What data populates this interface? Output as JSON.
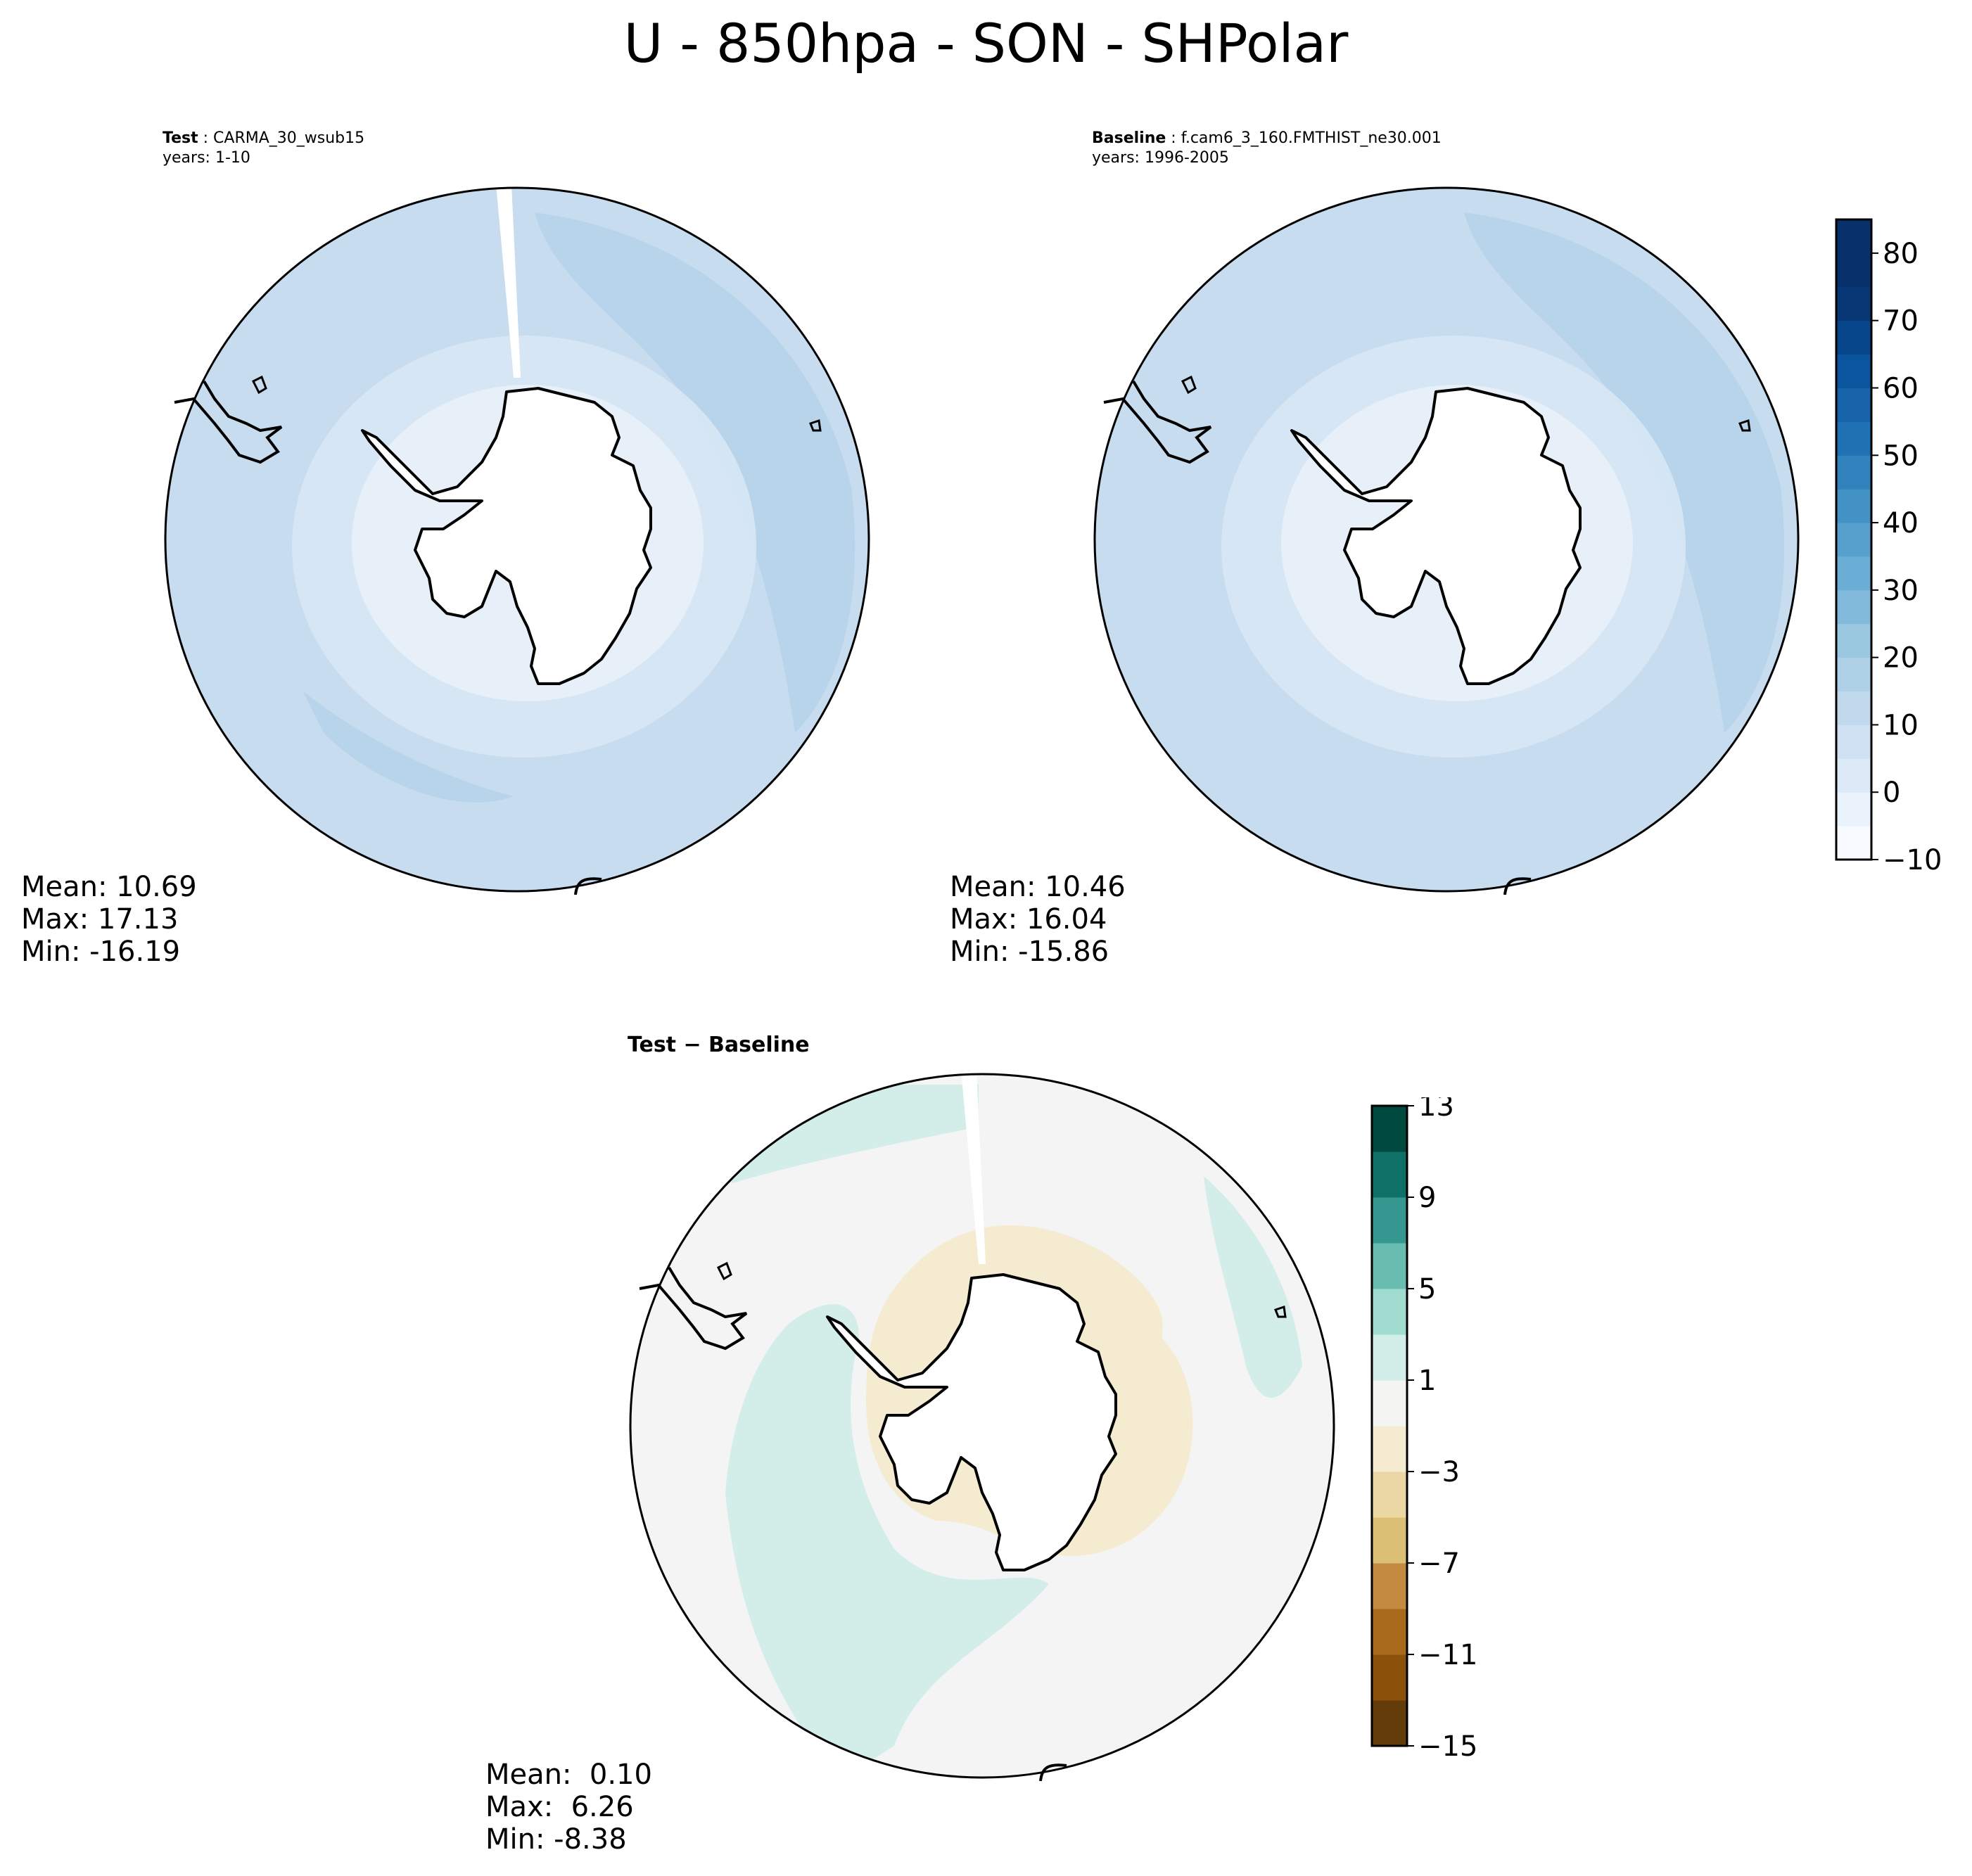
{
  "figure": {
    "title": "U - 850hpa - SON - SHPolar",
    "test": {
      "label": "Test",
      "case": "CARMA_30_wsub15",
      "years": "years: 1-10",
      "stats": {
        "mean": "Mean: 10.69",
        "max": "Max: 17.13",
        "min": "Min: -16.19"
      }
    },
    "baseline": {
      "label": "Baseline",
      "case": "f.cam6_3_160.FMTHIST_ne30.001",
      "years": "years: 1996-2005",
      "stats": {
        "mean": "Mean: 10.46",
        "max": "Max: 16.04",
        "min": "Min: -15.86"
      }
    },
    "difference": {
      "title": "Test − Baseline",
      "stats": {
        "mean": "Mean:  0.10",
        "max": "Max:  6.26",
        "min": "Min: -8.38"
      }
    }
  },
  "colorbars": {
    "main": {
      "ticks": [
        "−10",
        "0",
        "10",
        "20",
        "30",
        "40",
        "50",
        "60",
        "70",
        "80"
      ],
      "tick_values": [
        -10,
        0,
        10,
        20,
        30,
        40,
        50,
        60,
        70,
        80
      ],
      "range": [
        -10,
        85
      ],
      "colors": [
        "#f7fbff",
        "#eaf2fb",
        "#dce9f6",
        "#cfe1f2",
        "#c1d9ed",
        "#afd1e7",
        "#9ac8e0",
        "#82badb",
        "#6aaed6",
        "#57a0ce",
        "#4292c6",
        "#3182bd",
        "#2171b5",
        "#1764ab",
        "#0b559f",
        "#08468b",
        "#083776",
        "#08306b",
        "#08306b"
      ]
    },
    "diff": {
      "ticks": [
        "−15",
        "−11",
        "−7",
        "−3",
        "1",
        "5",
        "9",
        "13"
      ],
      "tick_values": [
        -15,
        -11,
        -7,
        -3,
        1,
        5,
        9,
        13
      ],
      "range": [
        -15,
        13
      ],
      "colors": [
        "#643c0a",
        "#8a510b",
        "#a8691c",
        "#c38b3f",
        "#dbbf74",
        "#ebd7a3",
        "#f5ebd0",
        "#f4f4f3",
        "#d3ede9",
        "#a1dcd1",
        "#69bdb1",
        "#35978f",
        "#0e7067",
        "#00493f"
      ]
    }
  },
  "colors": {
    "field_base": "#c8dcef",
    "field_strong": "#b8d4ea",
    "field_weak": "#dbe8f5",
    "field_weakest": "#e9f1fa",
    "diff_neutral": "#f3f4f3",
    "diff_pos": "#d3ede9",
    "diff_neg": "#f5ebd0"
  }
}
